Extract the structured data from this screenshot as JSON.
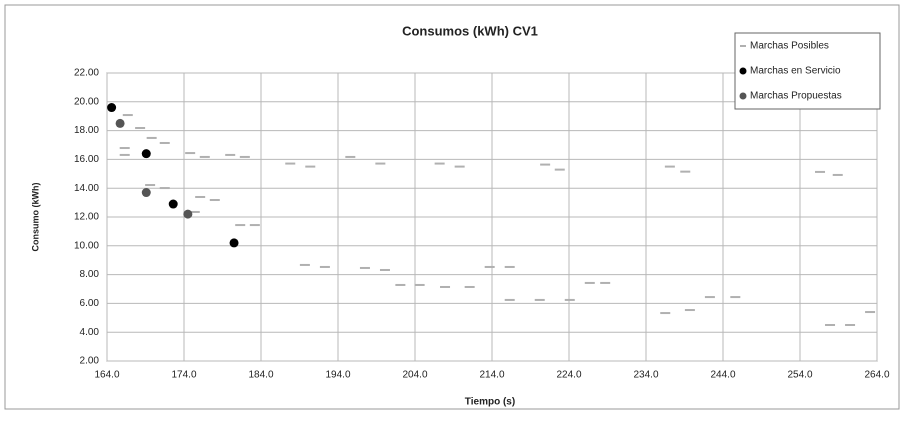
{
  "chart_data": {
    "type": "scatter",
    "title": "Consumos (kWh) CV1",
    "x_label": "Tiempo (s)",
    "y_label": "Consumo (kWh)",
    "xlim": [
      164,
      264
    ],
    "ylim": [
      2,
      22
    ],
    "xticks": [
      {
        "value": 164,
        "label": "164.0"
      },
      {
        "value": 174,
        "label": "174.0"
      },
      {
        "value": 184,
        "label": "184.0"
      },
      {
        "value": 194,
        "label": "194.0"
      },
      {
        "value": 204,
        "label": "204.0"
      },
      {
        "value": 214,
        "label": "214.0"
      },
      {
        "value": 224,
        "label": "224.0"
      },
      {
        "value": 234,
        "label": "234.0"
      },
      {
        "value": 244,
        "label": "244.0"
      },
      {
        "value": 254,
        "label": "254.0"
      },
      {
        "value": 264,
        "label": "264.0"
      }
    ],
    "yticks": [
      {
        "value": 2,
        "label": "2.00"
      },
      {
        "value": 4,
        "label": "4.00"
      },
      {
        "value": 6,
        "label": "6.00"
      },
      {
        "value": 8,
        "label": "8.00"
      },
      {
        "value": 10,
        "label": "10.00"
      },
      {
        "value": 12,
        "label": "12.00"
      },
      {
        "value": 14,
        "label": "14.00"
      },
      {
        "value": 16,
        "label": "16.00"
      },
      {
        "value": 18,
        "label": "18.00"
      },
      {
        "value": 20,
        "label": "20.00"
      },
      {
        "value": 22,
        "label": "22.00"
      }
    ],
    "grid": true,
    "legend": "top-right",
    "series": [
      {
        "name": "Marchas Posibles",
        "color": "#b0b0b0",
        "x": [
          166.7,
          168.3,
          169.8,
          171.5,
          166.3,
          166.3,
          174.8,
          176.7,
          180.0,
          181.9,
          187.8,
          190.4,
          195.6,
          199.5,
          207.2,
          209.8,
          220.9,
          222.8,
          237.1,
          239.1,
          256.6,
          258.9,
          169.6,
          171.5,
          176.1,
          178.0,
          175.4,
          181.3,
          183.2,
          189.7,
          192.3,
          197.5,
          200.1,
          202.1,
          204.6,
          207.9,
          211.1,
          213.7,
          216.3,
          216.3,
          220.2,
          224.1,
          226.7,
          228.7,
          236.5,
          239.7,
          242.3,
          245.6,
          257.9,
          260.5,
          263.1
        ],
        "values": [
          19.08,
          18.18,
          17.49,
          17.14,
          16.79,
          16.31,
          16.44,
          16.17,
          16.31,
          16.17,
          15.71,
          15.5,
          16.17,
          15.71,
          15.71,
          15.5,
          15.64,
          15.29,
          15.5,
          15.15,
          15.13,
          14.92,
          14.22,
          14.01,
          13.39,
          13.18,
          12.35,
          11.44,
          11.44,
          8.67,
          8.53,
          8.46,
          8.32,
          7.28,
          7.28,
          7.14,
          7.14,
          8.53,
          8.53,
          6.24,
          6.24,
          6.24,
          7.42,
          7.42,
          5.33,
          5.54,
          6.44,
          6.44,
          4.5,
          4.5,
          5.4
        ]
      },
      {
        "name": "Marchas en Servicio",
        "color": "#000000",
        "x": [
          164.6,
          169.1,
          172.6,
          180.5
        ],
        "values": [
          19.6,
          16.4,
          12.9,
          10.2
        ]
      },
      {
        "name": "Marchas Propuestas",
        "color": "#555555",
        "x": [
          165.7,
          169.1,
          174.5
        ],
        "values": [
          18.5,
          13.7,
          12.2
        ]
      }
    ]
  }
}
